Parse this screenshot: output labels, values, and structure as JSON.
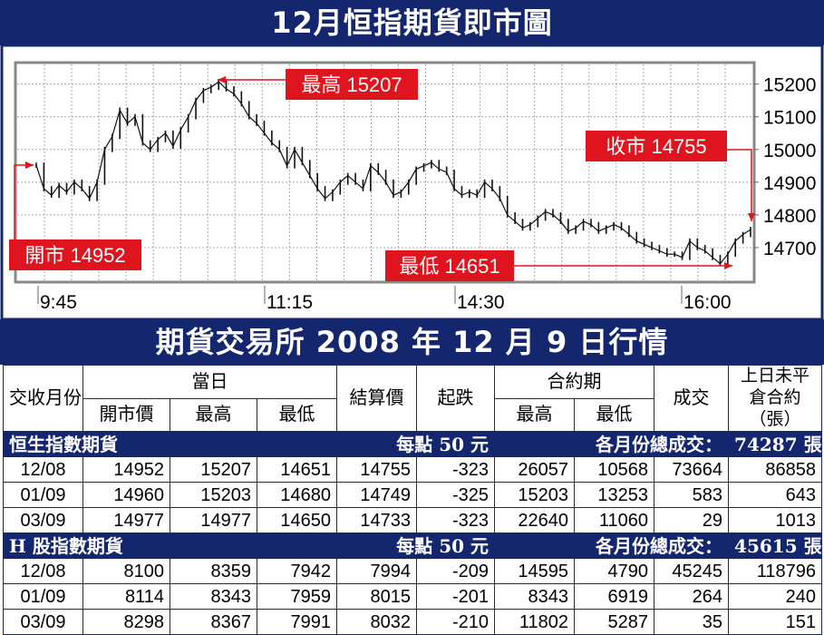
{
  "title": "12月恒指期貨即市圖",
  "table_title": "期貨交易所 2008 年 12 月 9 日行情",
  "chart_data": {
    "type": "line",
    "title": "12月恒指期貨即市圖",
    "x_ticks": [
      "9:45",
      "11:15",
      "14:30",
      "16:00"
    ],
    "y_ticks": [
      14700,
      14800,
      14900,
      15000,
      15100,
      15200
    ],
    "ylim": [
      14600,
      15260
    ],
    "grid": true,
    "annotations": {
      "open": {
        "label": "開市 14952",
        "value": 14952
      },
      "high": {
        "label": "最高 15207",
        "value": 15207
      },
      "low": {
        "label": "最低 14651",
        "value": 14651
      },
      "close": {
        "label": "收市 14755",
        "value": 14755
      }
    },
    "series": [
      {
        "values": [
          14952,
          14880,
          14860,
          14890,
          14870,
          14900,
          14880,
          14850,
          14900,
          15000,
          15040,
          15120,
          15080,
          15100,
          15020,
          15000,
          15030,
          15050,
          15010,
          15060,
          15100,
          15150,
          15180,
          15190,
          15207,
          15185,
          15170,
          15140,
          15100,
          15080,
          15050,
          15020,
          15000,
          14950,
          15000,
          14960,
          14920,
          14880,
          14850,
          14870,
          14900,
          14920,
          14900,
          14880,
          14950,
          14930,
          14900,
          14860,
          14870,
          14900,
          14940,
          14950,
          14960,
          14940,
          14930,
          14880,
          14860,
          14870,
          14860,
          14900,
          14880,
          14850,
          14800,
          14780,
          14760,
          14770,
          14790,
          14810,
          14800,
          14780,
          14750,
          14760,
          14780,
          14770,
          14750,
          14760,
          14770,
          14760,
          14740,
          14720,
          14710,
          14700,
          14690,
          14680,
          14680,
          14670,
          14720,
          14700,
          14690,
          14670,
          14651,
          14680,
          14720,
          14740,
          14755
        ]
      }
    ]
  },
  "table": {
    "headers": {
      "month": "交收月份",
      "day": "當日",
      "open": "開市價",
      "high": "最高",
      "low": "最低",
      "settle": "結算價",
      "change": "起跌",
      "contract": "合約期",
      "c_high": "最高",
      "c_low": "最低",
      "volume": "成交",
      "oi": "上日未平倉合約（張）"
    },
    "sections": [
      {
        "name": "恒生指數期貨",
        "per_point": "每點 50 元",
        "total_label": "各月份總成交：",
        "total": "74287 張",
        "rows": [
          [
            "12/08",
            "14952",
            "15207",
            "14651",
            "14755",
            "-323",
            "26057",
            "10568",
            "73664",
            "86858"
          ],
          [
            "01/09",
            "14960",
            "15203",
            "14680",
            "14749",
            "-325",
            "15203",
            "13253",
            "583",
            "643"
          ],
          [
            "03/09",
            "14977",
            "14977",
            "14650",
            "14733",
            "-323",
            "22640",
            "11060",
            "29",
            "1013"
          ]
        ]
      },
      {
        "name": "H 股指數期貨",
        "per_point": "每點 50 元",
        "total_label": "各月份總成交：",
        "total": "45615 張",
        "rows": [
          [
            "12/08",
            "8100",
            "8359",
            "7942",
            "7994",
            "-209",
            "14595",
            "4790",
            "45245",
            "118796"
          ],
          [
            "01/09",
            "8114",
            "8343",
            "7959",
            "8015",
            "-201",
            "8343",
            "6919",
            "264",
            "240"
          ],
          [
            "03/09",
            "8298",
            "8367",
            "7991",
            "8032",
            "-210",
            "11802",
            "5287",
            "35",
            "151"
          ]
        ]
      }
    ]
  },
  "colors": {
    "navy": "#14276e",
    "red": "#e0141e",
    "grid": "#aaaaaa"
  }
}
